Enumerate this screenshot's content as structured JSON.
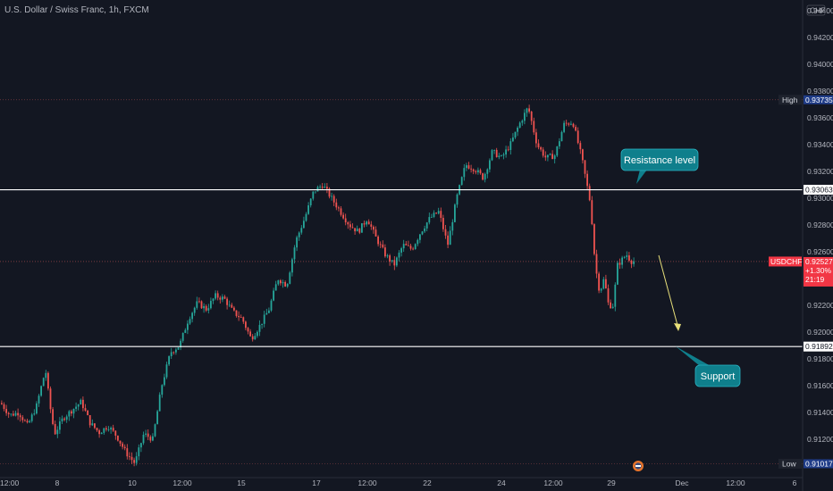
{
  "header": {
    "symbol_title": "U.S. Dollar / Swiss Franc, 1h, FXCM"
  },
  "axis": {
    "currency_badge": "CHF"
  },
  "colors": {
    "background": "#131722",
    "up_candle": "#26a69a",
    "down_candle": "#ef5350",
    "level_line": "#ffffff",
    "callout_fill": "#0f7f8c",
    "callout_border": "#2ab3c2",
    "arrow": "#e8e07a",
    "price_tag": "#f23645",
    "high_low_tag": "#1f3c88",
    "dotted_line": "#d05a5a"
  },
  "chart_data": {
    "type": "candlestick",
    "title": "U.S. Dollar / Swiss Franc, 1h, FXCM",
    "y_ticks": [
      "0.94400",
      "0.94200",
      "0.94000",
      "0.93800",
      "0.93600",
      "0.93400",
      "0.93200",
      "0.93000",
      "0.92800",
      "0.92600",
      "0.92400",
      "0.92200",
      "0.92000",
      "0.91800",
      "0.91600",
      "0.91400",
      "0.91200"
    ],
    "y_range": [
      0.9092,
      0.9448
    ],
    "x_ticks": [
      "12:00",
      "8",
      "10",
      "12:00",
      "15",
      "17",
      "12:00",
      "22",
      "24",
      "12:00",
      "29",
      "Dec",
      "12:00",
      "6"
    ],
    "path_x_range": [
      0,
      710
    ],
    "price_path": [
      [
        0,
        0.9147
      ],
      [
        10,
        0.9138
      ],
      [
        20,
        0.914
      ],
      [
        30,
        0.913
      ],
      [
        40,
        0.9145
      ],
      [
        50,
        0.9172
      ],
      [
        55,
        0.9145
      ],
      [
        60,
        0.9124
      ],
      [
        70,
        0.9136
      ],
      [
        80,
        0.9142
      ],
      [
        90,
        0.9148
      ],
      [
        100,
        0.9132
      ],
      [
        110,
        0.9125
      ],
      [
        120,
        0.913
      ],
      [
        130,
        0.9122
      ],
      [
        140,
        0.911
      ],
      [
        150,
        0.9102
      ],
      [
        160,
        0.9124
      ],
      [
        170,
        0.912
      ],
      [
        180,
        0.916
      ],
      [
        190,
        0.9185
      ],
      [
        200,
        0.919
      ],
      [
        210,
        0.921
      ],
      [
        220,
        0.9222
      ],
      [
        230,
        0.9217
      ],
      [
        240,
        0.9227
      ],
      [
        250,
        0.9225
      ],
      [
        260,
        0.9215
      ],
      [
        270,
        0.921
      ],
      [
        280,
        0.9195
      ],
      [
        290,
        0.9205
      ],
      [
        300,
        0.9217
      ],
      [
        310,
        0.924
      ],
      [
        320,
        0.9235
      ],
      [
        330,
        0.9268
      ],
      [
        340,
        0.9285
      ],
      [
        350,
        0.9305
      ],
      [
        360,
        0.931
      ],
      [
        370,
        0.93
      ],
      [
        380,
        0.929
      ],
      [
        390,
        0.928
      ],
      [
        400,
        0.9275
      ],
      [
        410,
        0.9285
      ],
      [
        420,
        0.927
      ],
      [
        430,
        0.9258
      ],
      [
        440,
        0.925
      ],
      [
        450,
        0.9265
      ],
      [
        460,
        0.9262
      ],
      [
        470,
        0.9275
      ],
      [
        480,
        0.9285
      ],
      [
        490,
        0.929
      ],
      [
        500,
        0.9265
      ],
      [
        510,
        0.93
      ],
      [
        520,
        0.9325
      ],
      [
        530,
        0.9322
      ],
      [
        540,
        0.9315
      ],
      [
        550,
        0.9335
      ],
      [
        560,
        0.933
      ],
      [
        570,
        0.934
      ],
      [
        580,
        0.9355
      ],
      [
        590,
        0.9368
      ],
      [
        600,
        0.934
      ],
      [
        610,
        0.933
      ],
      [
        620,
        0.9332
      ],
      [
        630,
        0.9355
      ],
      [
        640,
        0.9357
      ],
      [
        650,
        0.933
      ],
      [
        660,
        0.9295
      ],
      [
        665,
        0.925
      ],
      [
        670,
        0.923
      ],
      [
        675,
        0.924
      ],
      [
        680,
        0.922
      ],
      [
        685,
        0.922
      ],
      [
        690,
        0.925
      ],
      [
        700,
        0.9258
      ],
      [
        705,
        0.9253
      ]
    ],
    "levels": [
      {
        "name": "resistance",
        "value": 0.93063,
        "label": "0.93063"
      },
      {
        "name": "support",
        "value": 0.91892,
        "label": "0.91892"
      }
    ],
    "dotted_levels": [
      {
        "name": "high",
        "value": 0.93735,
        "label": "0.93735",
        "tag": "High"
      },
      {
        "name": "low",
        "value": 0.91017,
        "label": "0.91017",
        "tag": "Low"
      },
      {
        "name": "current",
        "value": 0.92527
      }
    ],
    "current_price": {
      "symbol": "USDCHF",
      "price": "0.92527",
      "change": "+1.30%",
      "countdown": "21:19"
    },
    "annotations": {
      "resistance": "Resistance level",
      "support": "Support"
    }
  }
}
